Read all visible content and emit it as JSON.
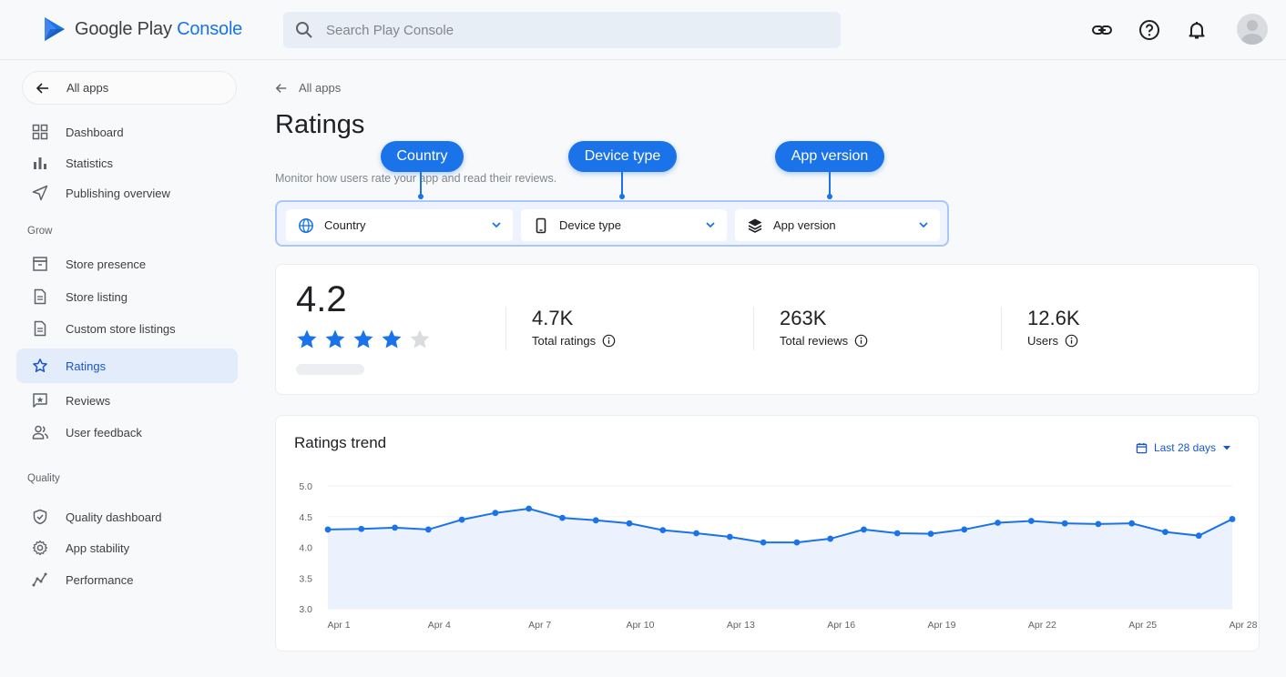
{
  "app": {
    "brand_main": "Google Play ",
    "brand_accent": "Console"
  },
  "search": {
    "placeholder": "Search Play Console"
  },
  "sidebar": {
    "back_label": "All apps",
    "top_items": [
      {
        "label": "Dashboard",
        "icon": "dashboard-icon"
      },
      {
        "label": "Statistics",
        "icon": "bar-chart-icon"
      },
      {
        "label": "Publishing overview",
        "icon": "send-icon"
      }
    ],
    "grow_label": "Grow",
    "grow_items": [
      {
        "label": "Store presence",
        "icon": "store-icon"
      },
      {
        "label": "Store listing",
        "icon": "document-icon"
      },
      {
        "label": "Custom store listings",
        "icon": "document-icon"
      },
      {
        "label": "Ratings",
        "icon": "star-icon",
        "active": true
      },
      {
        "label": "Reviews",
        "icon": "review-icon"
      },
      {
        "label": "User feedback",
        "icon": "people-icon"
      }
    ],
    "quality_label": "Quality",
    "quality_items": [
      {
        "label": "Quality dashboard",
        "icon": "shield-icon"
      },
      {
        "label": "App stability",
        "icon": "gear-icon"
      },
      {
        "label": "Performance",
        "icon": "performance-icon"
      }
    ]
  },
  "main": {
    "breadcrumb": "All apps",
    "title": "Ratings",
    "subtitle": "Monitor how users rate your app and read their reviews.",
    "callouts": [
      "Country",
      "Device type",
      "App version"
    ],
    "filters": [
      {
        "label": "Country",
        "icon": "globe-icon"
      },
      {
        "label": "Device type",
        "icon": "phone-icon"
      },
      {
        "label": "App version",
        "icon": "layers-icon"
      }
    ],
    "summary": {
      "rating": "4.2",
      "stars_filled": 4,
      "stars_total": 5,
      "metrics": [
        {
          "value": "4.7K",
          "label": "Total ratings"
        },
        {
          "value": "263K",
          "label": "Total reviews"
        },
        {
          "value": "12.6K",
          "label": "Users"
        }
      ]
    },
    "trend": {
      "title": "Ratings trend",
      "range_label": "Last 28 days"
    }
  },
  "colors": {
    "accent": "#1a73e8",
    "active_bg": "#e3ecfb",
    "star_empty": "#dadce0"
  },
  "chart_data": {
    "type": "area",
    "title": "Ratings trend",
    "xlabel": "",
    "ylabel": "",
    "ylim": [
      3.0,
      5.0
    ],
    "y_ticks": [
      "5.0",
      "4.5",
      "4.0",
      "3.5",
      "3.0"
    ],
    "x_ticks": [
      "Apr 1",
      "Apr 4",
      "Apr 7",
      "Apr 10",
      "Apr 13",
      "Apr 16",
      "Apr 19",
      "Apr 22",
      "Apr 25",
      "Apr 28"
    ],
    "x": [
      "Apr 1",
      "Apr 2",
      "Apr 3",
      "Apr 4",
      "Apr 5",
      "Apr 6",
      "Apr 7",
      "Apr 8",
      "Apr 9",
      "Apr 10",
      "Apr 11",
      "Apr 12",
      "Apr 13",
      "Apr 14",
      "Apr 15",
      "Apr 16",
      "Apr 17",
      "Apr 18",
      "Apr 19",
      "Apr 20",
      "Apr 21",
      "Apr 22",
      "Apr 23",
      "Apr 24",
      "Apr 25",
      "Apr 26",
      "Apr 27",
      "Apr 28"
    ],
    "values": [
      4.29,
      4.3,
      4.32,
      4.29,
      4.45,
      4.56,
      4.63,
      4.48,
      4.44,
      4.39,
      4.28,
      4.23,
      4.17,
      4.08,
      4.08,
      4.14,
      4.29,
      4.23,
      4.22,
      4.29,
      4.4,
      4.43,
      4.39,
      4.38,
      4.39,
      4.25,
      4.19,
      4.46
    ],
    "grid": true
  }
}
